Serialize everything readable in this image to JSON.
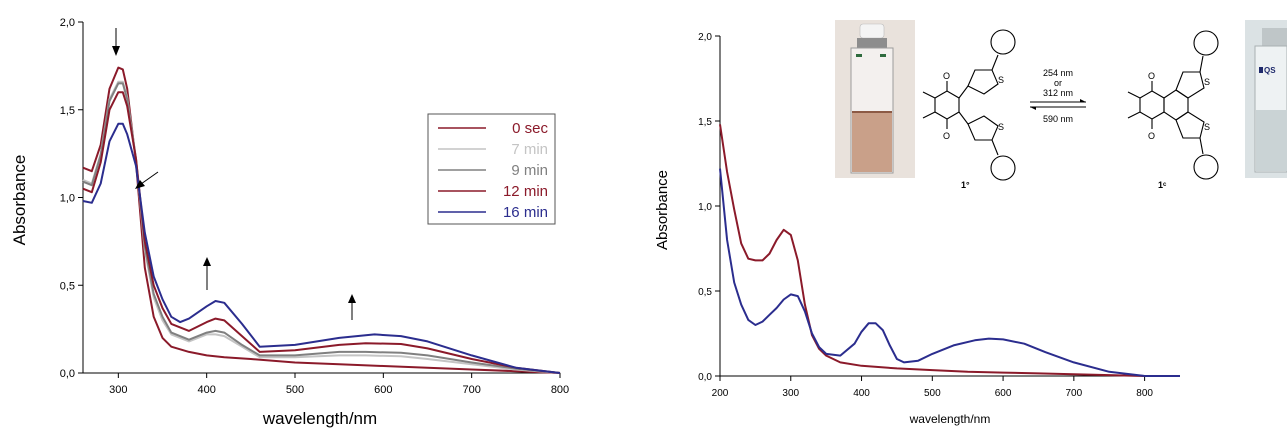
{
  "chart_data": [
    {
      "type": "line",
      "xlabel": "wavelength/nm",
      "ylabel": "Absorbance",
      "xlim": [
        260,
        800
      ],
      "ylim": [
        0,
        2.0
      ],
      "x_ticks": [
        "300",
        "400",
        "500",
        "600",
        "700",
        "800"
      ],
      "y_ticks": [
        "0,0",
        "0,5",
        "1,0",
        "1,5",
        "2,0"
      ],
      "grid": false,
      "legend": "right",
      "series": [
        {
          "name": "0 sec",
          "color": "#8b1a2a",
          "points": [
            [
              260,
              1.17
            ],
            [
              270,
              1.15
            ],
            [
              280,
              1.3
            ],
            [
              290,
              1.62
            ],
            [
              300,
              1.74
            ],
            [
              305,
              1.73
            ],
            [
              310,
              1.62
            ],
            [
              320,
              1.2
            ],
            [
              330,
              0.6
            ],
            [
              340,
              0.32
            ],
            [
              350,
              0.2
            ],
            [
              360,
              0.15
            ],
            [
              380,
              0.12
            ],
            [
              400,
              0.1
            ],
            [
              420,
              0.09
            ],
            [
              450,
              0.08
            ],
            [
              500,
              0.06
            ],
            [
              550,
              0.05
            ],
            [
              600,
              0.04
            ],
            [
              650,
              0.03
            ],
            [
              700,
              0.02
            ],
            [
              750,
              0.01
            ],
            [
              800,
              0.0
            ]
          ]
        },
        {
          "name": "7 min",
          "color": "#c4c4c4",
          "points": [
            [
              260,
              1.1
            ],
            [
              270,
              1.08
            ],
            [
              280,
              1.25
            ],
            [
              290,
              1.56
            ],
            [
              300,
              1.66
            ],
            [
              305,
              1.66
            ],
            [
              310,
              1.57
            ],
            [
              320,
              1.22
            ],
            [
              330,
              0.7
            ],
            [
              340,
              0.43
            ],
            [
              350,
              0.3
            ],
            [
              360,
              0.22
            ],
            [
              380,
              0.18
            ],
            [
              400,
              0.22
            ],
            [
              410,
              0.22
            ],
            [
              420,
              0.21
            ],
            [
              440,
              0.15
            ],
            [
              460,
              0.09
            ],
            [
              500,
              0.09
            ],
            [
              550,
              0.1
            ],
            [
              580,
              0.1
            ],
            [
              620,
              0.095
            ],
            [
              650,
              0.08
            ],
            [
              700,
              0.05
            ],
            [
              750,
              0.02
            ],
            [
              800,
              0.0
            ]
          ]
        },
        {
          "name": "9 min",
          "color": "#808080",
          "points": [
            [
              260,
              1.09
            ],
            [
              270,
              1.07
            ],
            [
              280,
              1.24
            ],
            [
              290,
              1.55
            ],
            [
              300,
              1.65
            ],
            [
              305,
              1.65
            ],
            [
              310,
              1.56
            ],
            [
              320,
              1.22
            ],
            [
              330,
              0.72
            ],
            [
              340,
              0.45
            ],
            [
              350,
              0.32
            ],
            [
              360,
              0.23
            ],
            [
              380,
              0.19
            ],
            [
              400,
              0.23
            ],
            [
              410,
              0.24
            ],
            [
              420,
              0.23
            ],
            [
              440,
              0.16
            ],
            [
              460,
              0.1
            ],
            [
              500,
              0.1
            ],
            [
              550,
              0.12
            ],
            [
              580,
              0.12
            ],
            [
              620,
              0.115
            ],
            [
              650,
              0.1
            ],
            [
              700,
              0.06
            ],
            [
              750,
              0.025
            ],
            [
              800,
              0.0
            ]
          ]
        },
        {
          "name": "12 min",
          "color": "#8b1a2a",
          "points": [
            [
              260,
              1.05
            ],
            [
              270,
              1.03
            ],
            [
              280,
              1.2
            ],
            [
              290,
              1.5
            ],
            [
              300,
              1.6
            ],
            [
              305,
              1.6
            ],
            [
              310,
              1.52
            ],
            [
              320,
              1.22
            ],
            [
              330,
              0.75
            ],
            [
              340,
              0.5
            ],
            [
              350,
              0.37
            ],
            [
              360,
              0.28
            ],
            [
              380,
              0.24
            ],
            [
              400,
              0.29
            ],
            [
              410,
              0.31
            ],
            [
              420,
              0.3
            ],
            [
              440,
              0.21
            ],
            [
              460,
              0.12
            ],
            [
              500,
              0.13
            ],
            [
              550,
              0.16
            ],
            [
              580,
              0.17
            ],
            [
              620,
              0.165
            ],
            [
              650,
              0.14
            ],
            [
              700,
              0.08
            ],
            [
              750,
              0.03
            ],
            [
              800,
              0.0
            ]
          ]
        },
        {
          "name": "16 min",
          "color": "#2b2d8e",
          "points": [
            [
              260,
              0.98
            ],
            [
              270,
              0.97
            ],
            [
              280,
              1.08
            ],
            [
              290,
              1.32
            ],
            [
              300,
              1.42
            ],
            [
              305,
              1.42
            ],
            [
              310,
              1.36
            ],
            [
              320,
              1.18
            ],
            [
              330,
              0.8
            ],
            [
              340,
              0.55
            ],
            [
              350,
              0.42
            ],
            [
              360,
              0.32
            ],
            [
              370,
              0.29
            ],
            [
              380,
              0.31
            ],
            [
              400,
              0.38
            ],
            [
              410,
              0.41
            ],
            [
              420,
              0.4
            ],
            [
              440,
              0.28
            ],
            [
              460,
              0.15
            ],
            [
              500,
              0.16
            ],
            [
              550,
              0.2
            ],
            [
              590,
              0.22
            ],
            [
              620,
              0.21
            ],
            [
              650,
              0.18
            ],
            [
              700,
              0.1
            ],
            [
              750,
              0.03
            ],
            [
              800,
              0.0
            ]
          ]
        }
      ],
      "annotations": [
        "arrow-down at 300 nm",
        "arrow down-left near 330 nm",
        "arrow-up near 410 nm",
        "arrow-up near 590 nm"
      ]
    },
    {
      "type": "line",
      "xlabel": "wavelength/nm",
      "ylabel": "Absorbance",
      "xlim": [
        200,
        850
      ],
      "ylim": [
        0,
        2.0
      ],
      "x_ticks": [
        "200",
        "300",
        "400",
        "500",
        "600",
        "700",
        "800"
      ],
      "y_ticks": [
        "0,0",
        "0,5",
        "1,0",
        "1,5",
        "2,0"
      ],
      "grid": false,
      "series": [
        {
          "color": "#8b1a2a",
          "points": [
            [
              200,
              1.48
            ],
            [
              210,
              1.2
            ],
            [
              220,
              0.98
            ],
            [
              230,
              0.78
            ],
            [
              240,
              0.69
            ],
            [
              250,
              0.68
            ],
            [
              260,
              0.68
            ],
            [
              270,
              0.72
            ],
            [
              280,
              0.8
            ],
            [
              290,
              0.86
            ],
            [
              300,
              0.83
            ],
            [
              310,
              0.68
            ],
            [
              320,
              0.42
            ],
            [
              330,
              0.24
            ],
            [
              340,
              0.16
            ],
            [
              350,
              0.12
            ],
            [
              370,
              0.08
            ],
            [
              400,
              0.06
            ],
            [
              450,
              0.045
            ],
            [
              500,
              0.035
            ],
            [
              550,
              0.025
            ],
            [
              600,
              0.02
            ],
            [
              650,
              0.015
            ],
            [
              700,
              0.01
            ],
            [
              750,
              0.005
            ],
            [
              800,
              0.0
            ],
            [
              850,
              0.0
            ]
          ]
        },
        {
          "color": "#2b2d8e",
          "points": [
            [
              200,
              1.22
            ],
            [
              210,
              0.8
            ],
            [
              220,
              0.55
            ],
            [
              230,
              0.42
            ],
            [
              240,
              0.33
            ],
            [
              250,
              0.3
            ],
            [
              260,
              0.32
            ],
            [
              270,
              0.36
            ],
            [
              280,
              0.4
            ],
            [
              290,
              0.45
            ],
            [
              300,
              0.48
            ],
            [
              310,
              0.47
            ],
            [
              320,
              0.38
            ],
            [
              330,
              0.25
            ],
            [
              340,
              0.17
            ],
            [
              350,
              0.13
            ],
            [
              370,
              0.12
            ],
            [
              390,
              0.19
            ],
            [
              400,
              0.26
            ],
            [
              410,
              0.31
            ],
            [
              420,
              0.31
            ],
            [
              430,
              0.27
            ],
            [
              440,
              0.18
            ],
            [
              450,
              0.1
            ],
            [
              460,
              0.08
            ],
            [
              480,
              0.09
            ],
            [
              500,
              0.13
            ],
            [
              530,
              0.18
            ],
            [
              560,
              0.21
            ],
            [
              580,
              0.22
            ],
            [
              600,
              0.215
            ],
            [
              630,
              0.19
            ],
            [
              660,
              0.14
            ],
            [
              700,
              0.08
            ],
            [
              750,
              0.025
            ],
            [
              800,
              0.0
            ],
            [
              850,
              0.0
            ]
          ]
        }
      ],
      "inset": {
        "labels": [
          "254 nm",
          "or",
          "312 nm",
          "590 nm"
        ],
        "compound_open": "1°",
        "compound_closed": "1ᶜ",
        "vial_label": "QS"
      }
    }
  ]
}
